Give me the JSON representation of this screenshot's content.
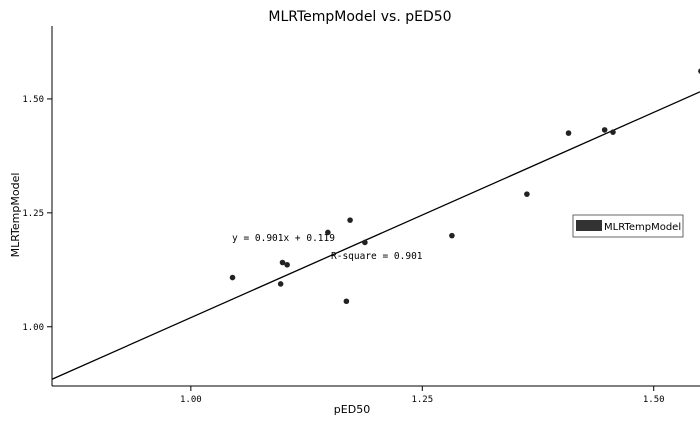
{
  "chart_data": {
    "type": "scatter",
    "title": "MLRTempModel vs. pED50",
    "xlabel": "pED50",
    "ylabel": "MLRTempModel",
    "xlim": [
      0.85,
      1.55
    ],
    "ylim": [
      0.87,
      1.66
    ],
    "x_ticks": [
      "1.00",
      "1.25",
      "1.50"
    ],
    "x_tick_values": [
      1.0,
      1.25,
      1.5
    ],
    "y_ticks": [
      "1.00",
      "1.25",
      "1.50"
    ],
    "y_tick_values": [
      1.0,
      1.25,
      1.5
    ],
    "grid": false,
    "legend": {
      "position": "right",
      "entries": [
        "MLRTempModel"
      ]
    },
    "series": [
      {
        "name": "MLRTempModel",
        "points": [
          {
            "x": 1.045,
            "y": 1.108
          },
          {
            "x": 1.097,
            "y": 1.094
          },
          {
            "x": 1.099,
            "y": 1.141
          },
          {
            "x": 1.104,
            "y": 1.136
          },
          {
            "x": 1.148,
            "y": 1.207
          },
          {
            "x": 1.168,
            "y": 1.056
          },
          {
            "x": 1.172,
            "y": 1.234
          },
          {
            "x": 1.188,
            "y": 1.185
          },
          {
            "x": 1.282,
            "y": 1.2
          },
          {
            "x": 1.363,
            "y": 1.291
          },
          {
            "x": 1.408,
            "y": 1.425
          },
          {
            "x": 1.447,
            "y": 1.432
          },
          {
            "x": 1.456,
            "y": 1.427
          },
          {
            "x": 1.551,
            "y": 1.561
          }
        ]
      }
    ],
    "fit_line": {
      "slope": 0.901,
      "intercept": 0.119,
      "x_range": [
        0.85,
        1.55
      ]
    },
    "annotations": {
      "equation": "y = 0.901x + 0.119",
      "r_square": "R-square = 0.901"
    }
  },
  "colors": {
    "axis": "#000000",
    "point": "#222222",
    "line": "#000000",
    "legend_swatch": "#333333"
  }
}
